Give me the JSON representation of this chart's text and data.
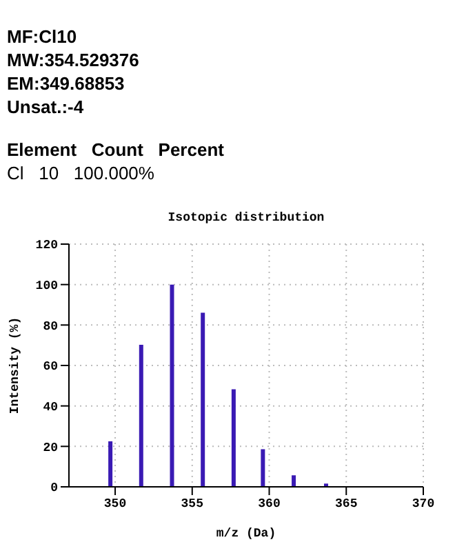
{
  "chart_data": {
    "type": "bar",
    "title": "Isotopic distribution",
    "xlabel": "m/z (Da)",
    "ylabel": "Intensity (%)",
    "annotations": [
      "MF:Cl10",
      "MW:354.529376",
      "EM:349.68853",
      "Unsat.:-4",
      "Element   Count   Percent",
      "Cl   10   100.000%"
    ],
    "x": [
      349.7,
      351.7,
      353.7,
      355.7,
      357.7,
      359.6,
      361.6,
      363.7
    ],
    "values": [
      22.5,
      70.2,
      100,
      86.1,
      48.2,
      18.6,
      5.7,
      1.6
    ],
    "color": "#3a1ab4",
    "xlim": [
      347,
      370
    ],
    "xticks": [
      350,
      355,
      360,
      365,
      370
    ],
    "ylim": [
      0,
      120
    ],
    "yticks": [
      0,
      20,
      40,
      60,
      80,
      100,
      120
    ],
    "grid": true
  }
}
